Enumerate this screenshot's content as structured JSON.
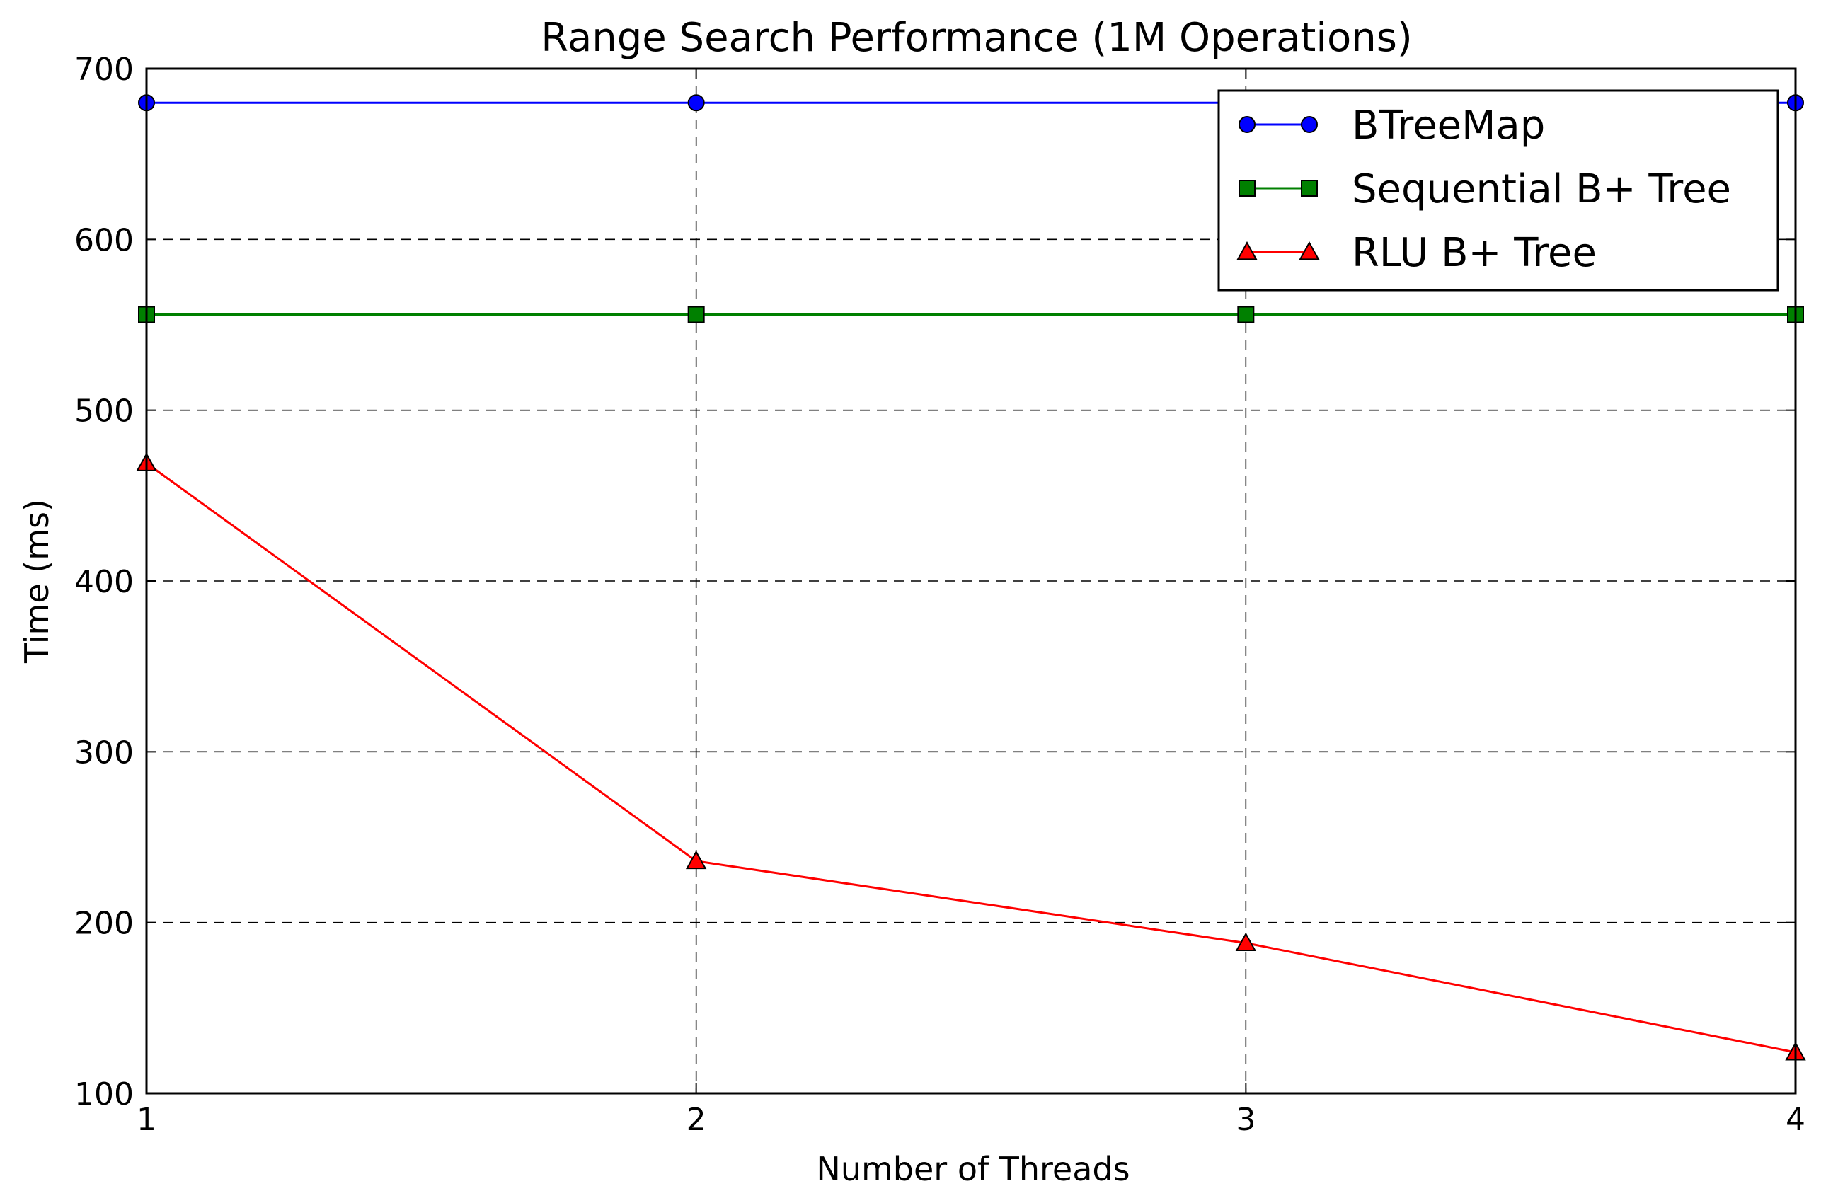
{
  "chart_data": {
    "type": "line",
    "title": "Range Search Performance (1M Operations)",
    "xlabel": "Number of Threads",
    "ylabel": "Time (ms)",
    "x": [
      1,
      2,
      3,
      4
    ],
    "xlim": [
      1,
      4
    ],
    "ylim": [
      100,
      700
    ],
    "xticks": [
      1,
      2,
      3,
      4
    ],
    "yticks": [
      100,
      200,
      300,
      400,
      500,
      600,
      700
    ],
    "grid": true,
    "legend_position": "top-right",
    "series": [
      {
        "name": "BTreeMap",
        "values": [
          680,
          680,
          680,
          680
        ],
        "color": "#0000ff",
        "marker": "circle"
      },
      {
        "name": "Sequential B+ Tree",
        "values": [
          556,
          556,
          556,
          556
        ],
        "color": "#008000",
        "marker": "square"
      },
      {
        "name": "RLU B+ Tree",
        "values": [
          469,
          236,
          188,
          124
        ],
        "color": "#ff0000",
        "marker": "triangle"
      }
    ]
  }
}
